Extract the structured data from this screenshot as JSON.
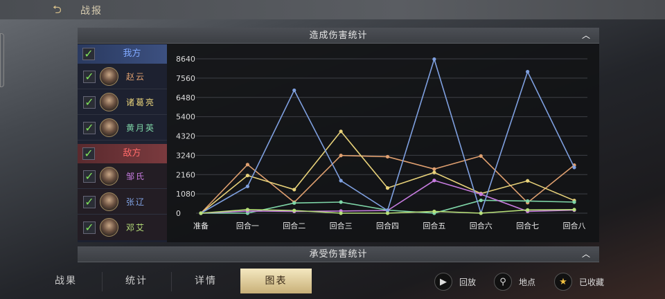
{
  "header": {
    "title": "战报",
    "back_icon": "back-arrow-icon"
  },
  "damage_dealt": {
    "title": "造成伤害统计",
    "collapse_icon": "chevron-up-icon"
  },
  "damage_taken": {
    "title": "承受伤害统计",
    "collapse_icon": "chevron-up-icon"
  },
  "groups": [
    {
      "label": "我方",
      "checked": true,
      "color": "#7fa8ff",
      "members": [
        {
          "name": "赵云",
          "checked": true,
          "color": "#e0a070"
        },
        {
          "name": "诸葛亮",
          "checked": true,
          "color": "#e8d27a"
        },
        {
          "name": "黄月英",
          "checked": true,
          "color": "#7fd6a8"
        }
      ]
    },
    {
      "label": "敌方",
      "checked": true,
      "color": "#ff6a6a",
      "members": [
        {
          "name": "邹氏",
          "checked": true,
          "color": "#c77ce0"
        },
        {
          "name": "张辽",
          "checked": true,
          "color": "#7fa0e0"
        },
        {
          "name": "邓艾",
          "checked": true,
          "color": "#b8e07a"
        }
      ]
    }
  ],
  "chart_data": {
    "type": "line",
    "categories": [
      "准备",
      "回合一",
      "回合二",
      "回合三",
      "回合四",
      "回合五",
      "回合六",
      "回合七",
      "回合八"
    ],
    "yticks": [
      0,
      1080,
      2160,
      3240,
      4320,
      5400,
      6480,
      7560,
      8640
    ],
    "ylim": [
      0,
      8640
    ],
    "grid": true,
    "series": [
      {
        "name": "赵云",
        "color": "#e0a070",
        "values": [
          0,
          2720,
          610,
          3230,
          3160,
          2470,
          3200,
          590,
          2690
        ]
      },
      {
        "name": "诸葛亮",
        "color": "#e8d27a",
        "values": [
          0,
          2110,
          1320,
          4580,
          1410,
          2280,
          1100,
          1810,
          710
        ]
      },
      {
        "name": "黄月英",
        "color": "#7fd6a8",
        "values": [
          0,
          0,
          570,
          620,
          170,
          0,
          720,
          680,
          620
        ]
      },
      {
        "name": "邹氏",
        "color": "#c77ce0",
        "values": [
          0,
          120,
          100,
          120,
          150,
          1830,
          1060,
          100,
          170
        ]
      },
      {
        "name": "张辽",
        "color": "#7fa0e0",
        "values": [
          0,
          1500,
          6880,
          1820,
          150,
          8620,
          0,
          7920,
          2560
        ]
      },
      {
        "name": "邓艾",
        "color": "#b8e07a",
        "values": [
          0,
          200,
          150,
          0,
          0,
          100,
          0,
          180,
          200
        ]
      }
    ]
  },
  "tabs": [
    {
      "label": "战果"
    },
    {
      "label": "统计"
    },
    {
      "label": "详情"
    },
    {
      "label": "图表",
      "active": true
    }
  ],
  "actions": [
    {
      "label": "回放",
      "icon": "replay-icon"
    },
    {
      "label": "地点",
      "icon": "location-pin-icon"
    },
    {
      "label": "已收藏",
      "icon": "star-icon"
    }
  ]
}
